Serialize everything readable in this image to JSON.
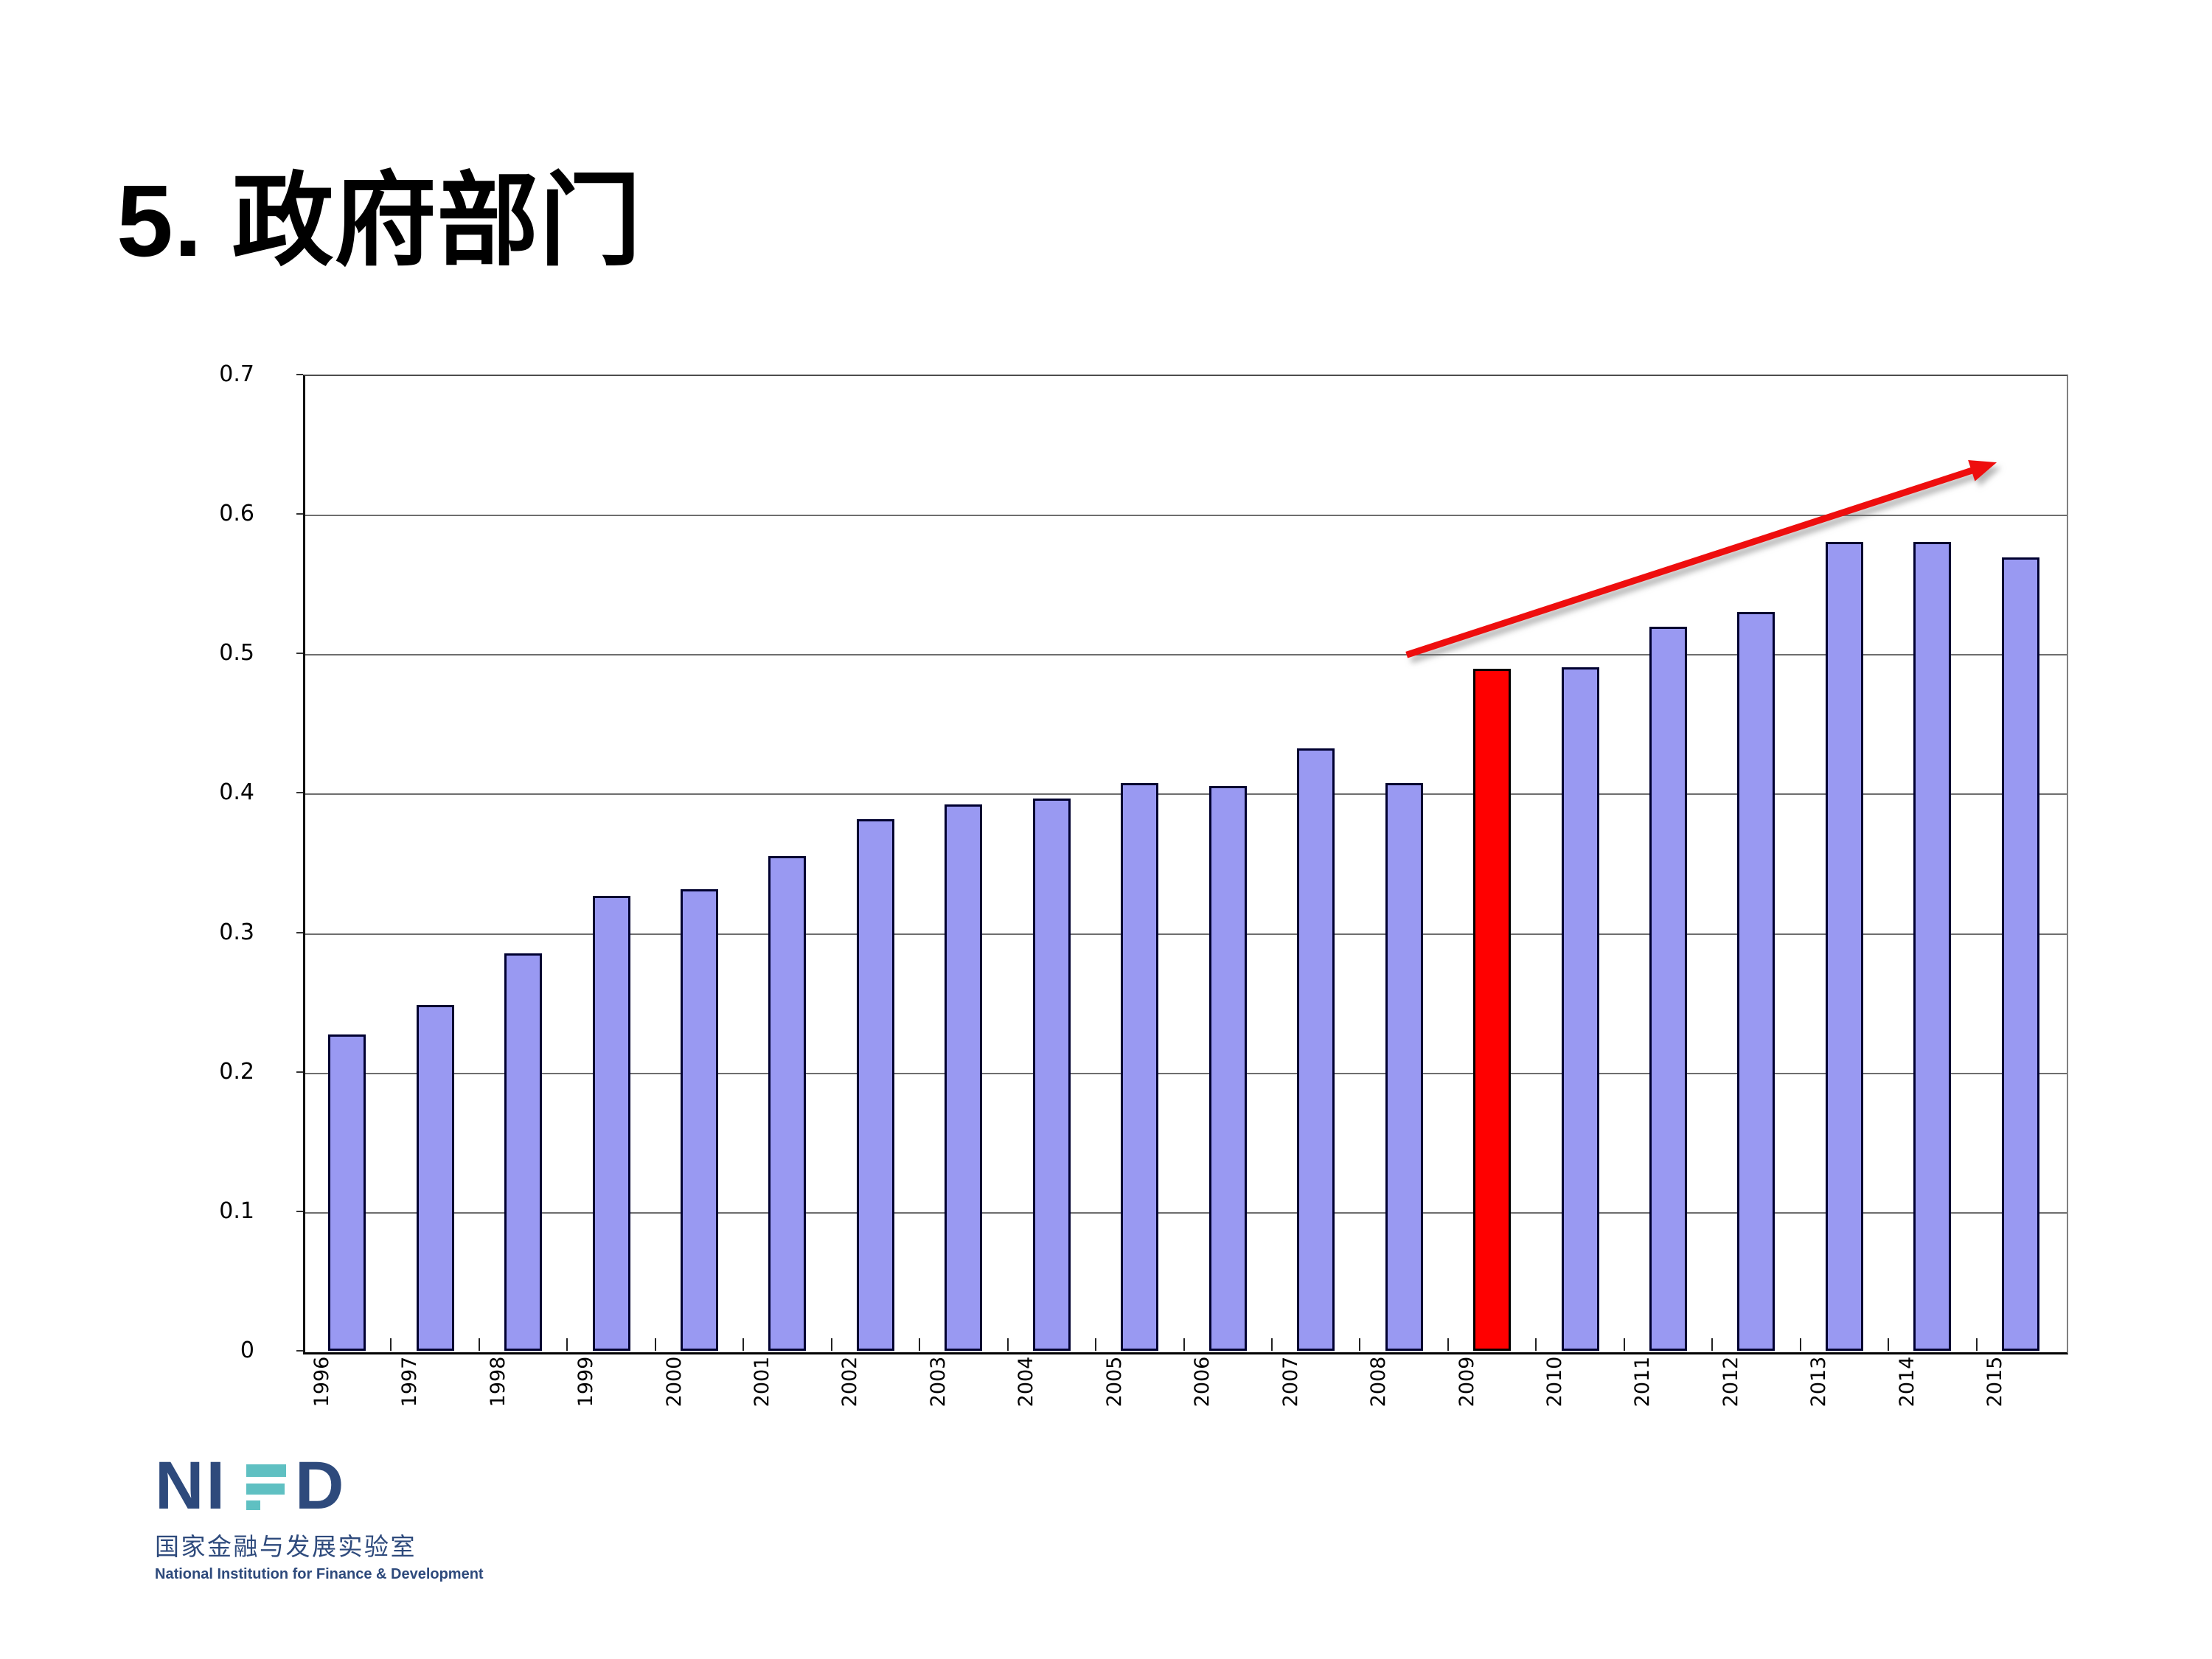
{
  "slide": {
    "title": "5. 政府部门"
  },
  "chart_data": {
    "type": "bar",
    "title": "",
    "xlabel": "",
    "ylabel": "",
    "categories": [
      "1996",
      "1997",
      "1998",
      "1999",
      "2000",
      "2001",
      "2002",
      "2003",
      "2004",
      "2005",
      "2006",
      "2007",
      "2008",
      "2009",
      "2010",
      "2011",
      "2012",
      "2013",
      "2014",
      "2015"
    ],
    "values": [
      0.227,
      0.248,
      0.285,
      0.326,
      0.331,
      0.355,
      0.381,
      0.392,
      0.396,
      0.407,
      0.405,
      0.432,
      0.407,
      0.489,
      0.49,
      0.519,
      0.53,
      0.58,
      0.58,
      0.569
    ],
    "highlight_category": "2009",
    "ylim": [
      0,
      0.7
    ],
    "yticks": [
      0.7,
      0.6,
      0.5,
      0.4,
      0.3,
      0.2,
      0.1,
      0
    ],
    "ytick_labels": [
      "0.7",
      "0.6",
      "0.5",
      "0.4",
      "0.3",
      "0.2",
      "0.1",
      "0"
    ],
    "grid": true,
    "legend": false,
    "colors": {
      "bar_fill": "#9999F2",
      "bar_border": "#000030",
      "highlight_fill": "#FF0000",
      "highlight_border": "#000000",
      "gridline": "#6e6e6e",
      "axis": "#000000",
      "arrow": "#EE0E0E"
    },
    "annotation_arrow": {
      "description": "red trend arrow rising from the 0.5 level near 2008/2009 to about 0.64 above 2015",
      "color": "#EE0E0E",
      "from": {
        "x_index": 12.53,
        "value": 0.499
      },
      "to": {
        "x_index": 19.23,
        "value": 0.637
      }
    }
  },
  "logo": {
    "wordmark_left": "NI",
    "wordmark_right": "D",
    "stylized_letter": "F",
    "chinese_name": "国家金融与发展实验室",
    "english_name": "National Institution for Finance & Development",
    "colors": {
      "navy": "#2E4A7C",
      "teal": "#5FC0C2"
    }
  }
}
